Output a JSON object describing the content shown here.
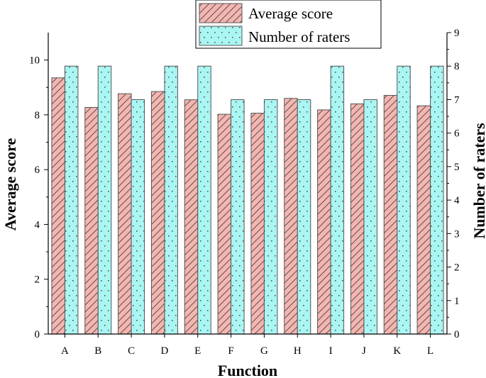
{
  "chart_data": {
    "type": "bar",
    "categories": [
      "A",
      "B",
      "C",
      "D",
      "E",
      "F",
      "G",
      "H",
      "I",
      "J",
      "K",
      "L"
    ],
    "series": [
      {
        "name": "Average score",
        "axis": "left",
        "color": "#f6b5b0",
        "pattern": "diagonal-hatch",
        "values": [
          9.35,
          8.27,
          8.77,
          8.85,
          8.55,
          8.02,
          8.06,
          8.6,
          8.18,
          8.4,
          8.71,
          8.33
        ]
      },
      {
        "name": "Number of raters",
        "axis": "right",
        "color": "#a9f6f3",
        "pattern": "dots",
        "values": [
          8,
          8,
          7,
          8,
          8,
          7,
          7,
          7,
          8,
          7,
          8,
          8
        ]
      }
    ],
    "xlabel": "Function",
    "ylabel": "Average score",
    "y2label": "Number of raters",
    "ylim": [
      0,
      11
    ],
    "y2lim": [
      0,
      9
    ],
    "yticks": [
      0,
      2,
      4,
      6,
      8,
      10
    ],
    "y2ticks": [
      0,
      1,
      2,
      3,
      4,
      5,
      6,
      7,
      8,
      9
    ],
    "grid": false,
    "legend_position": "top-center"
  }
}
